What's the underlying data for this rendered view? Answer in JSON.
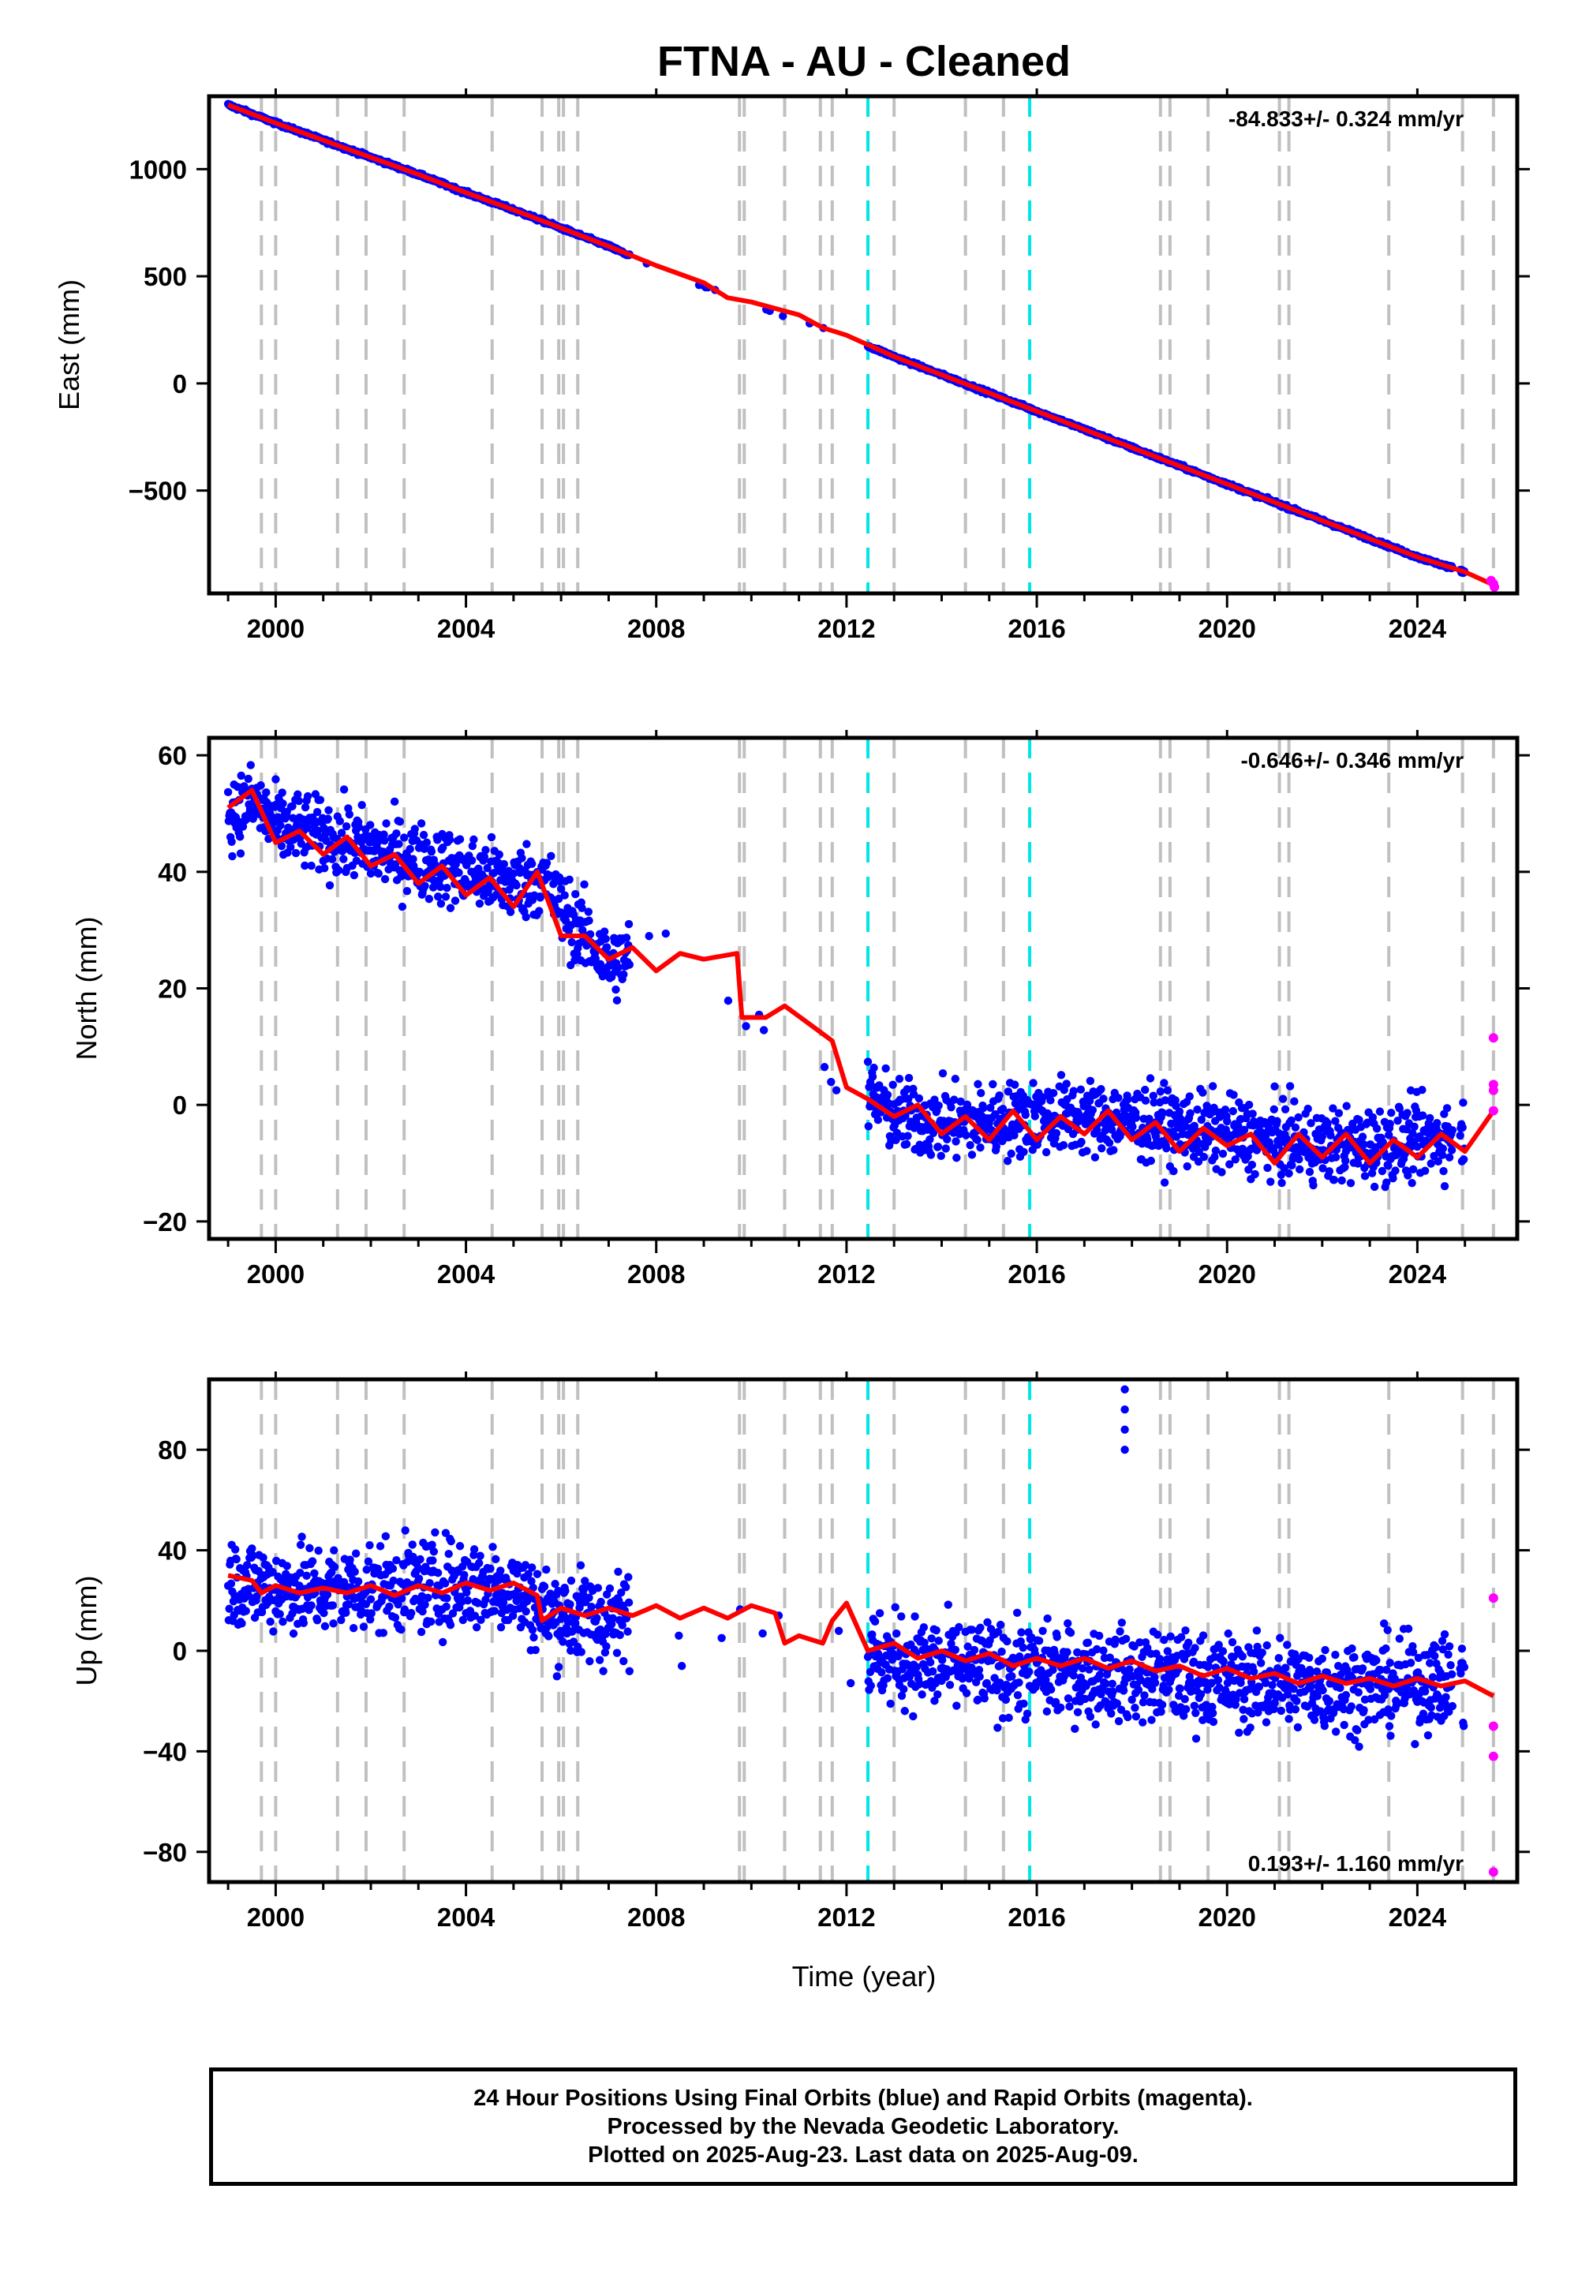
{
  "title": "FTNA  - AU - Cleaned",
  "xlabel": "Time (year)",
  "x_ticks": [
    2000,
    2004,
    2008,
    2012,
    2016,
    2020,
    2024
  ],
  "footer": {
    "line1": "24 Hour Positions Using Final Orbits (blue) and Rapid Orbits (magenta).",
    "line2": "Processed by the Nevada Geodetic Laboratory.",
    "line3": "Plotted on 2025-Aug-23. Last data on 2025-Aug-09."
  },
  "colors": {
    "final_orbits": "#0000ff",
    "rapid_orbits": "#ff00ff",
    "model": "#ff0000",
    "gray_events": "#c0c0c0",
    "cyan_events": "#00e5e5"
  },
  "chart_data": [
    {
      "type": "scatter",
      "panel": "east",
      "ylabel": "East (mm)",
      "rate_text": "-84.833+/- 0.324 mm/yr",
      "xlim": [
        1998.6,
        2026.1
      ],
      "ylim": [
        -980,
        1340
      ],
      "y_ticks": [
        -500,
        0,
        500,
        1000
      ],
      "gray_events": [
        1999.7,
        2000.0,
        2001.3,
        2001.9,
        2002.7,
        2004.55,
        2005.6,
        2005.95,
        2006.05,
        2006.35,
        2009.75,
        2009.85,
        2010.7,
        2011.45,
        2011.7,
        2013.0,
        2014.5,
        2015.3,
        2018.6,
        2018.8,
        2019.6,
        2021.1,
        2021.3,
        2023.4,
        2024.95,
        2025.6
      ],
      "cyan_events": [
        2012.45,
        2015.85
      ],
      "series": [
        {
          "kind": "final",
          "x": [
            1999.0,
            2000.0,
            2001.0,
            2002.0,
            2003.0,
            2004.0,
            2005.0,
            2006.0,
            2007.0,
            2007.4,
            2008.8,
            2009.7,
            2010.5,
            2011.5,
            2012.45,
            2013.0,
            2014.0,
            2015.0,
            2016.0,
            2017.0,
            2018.0,
            2019.0,
            2020.0,
            2021.0,
            2022.0,
            2023.0,
            2024.0,
            2025.0
          ],
          "y": [
            1300,
            1215,
            1135,
            1055,
            975,
            890,
            810,
            725,
            640,
            600,
            470,
            395,
            330,
            265,
            175,
            125,
            40,
            -45,
            -130,
            -215,
            -300,
            -385,
            -470,
            -555,
            -640,
            -725,
            -810,
            -880
          ]
        },
        {
          "kind": "rapid",
          "x": [
            2025.55,
            2025.6,
            2025.62
          ],
          "y": [
            -920,
            -935,
            -950
          ]
        },
        {
          "kind": "model",
          "x": [
            1999.0,
            2000.0,
            2001.0,
            2002.0,
            2003.0,
            2004.0,
            2005.0,
            2006.0,
            2007.0,
            2008.0,
            2009.0,
            2009.5,
            2010.0,
            2011.0,
            2011.5,
            2012.0,
            2012.45,
            2013.0,
            2014.0,
            2015.0,
            2016.0,
            2017.0,
            2018.0,
            2019.0,
            2020.0,
            2021.0,
            2022.0,
            2023.0,
            2024.0,
            2025.0,
            2025.6
          ],
          "y": [
            1300,
            1215,
            1135,
            1055,
            975,
            890,
            810,
            725,
            640,
            550,
            470,
            400,
            380,
            320,
            260,
            225,
            180,
            125,
            40,
            -45,
            -130,
            -215,
            -300,
            -385,
            -470,
            -555,
            -640,
            -725,
            -810,
            -880,
            -940
          ]
        }
      ]
    },
    {
      "type": "scatter",
      "panel": "north",
      "ylabel": "North (mm)",
      "rate_text": "-0.646+/- 0.346 mm/yr",
      "xlim": [
        1998.6,
        2026.1
      ],
      "ylim": [
        -23,
        63
      ],
      "y_ticks": [
        -20,
        0,
        20,
        40,
        60
      ],
      "gray_events": [
        1999.7,
        2000.0,
        2001.3,
        2001.9,
        2002.7,
        2004.55,
        2005.6,
        2005.95,
        2006.05,
        2006.35,
        2009.75,
        2009.85,
        2010.7,
        2011.45,
        2011.7,
        2013.0,
        2014.5,
        2015.3,
        2018.6,
        2018.8,
        2019.6,
        2021.1,
        2021.3,
        2023.4,
        2024.95,
        2025.6
      ],
      "cyan_events": [
        2012.45,
        2015.85
      ],
      "series": [
        {
          "kind": "final",
          "x": [
            1999.0,
            1999.5,
            2000.0,
            2001.0,
            2002.0,
            2003.0,
            2004.0,
            2005.0,
            2005.6,
            2006.0,
            2006.5,
            2007.0,
            2007.5,
            2008.9,
            2010.0,
            2010.6,
            2011.2,
            2012.45,
            2013.0,
            2014.0,
            2015.0,
            2016.0,
            2017.0,
            2018.0,
            2019.0,
            2020.0,
            2021.0,
            2022.0,
            2023.0,
            2024.0,
            2025.0
          ],
          "y": [
            50,
            52,
            48,
            46,
            44,
            42,
            40,
            38,
            39,
            34,
            29,
            24,
            26,
            29,
            15,
            16,
            13,
            2,
            -2,
            -3,
            -3,
            -2,
            -2,
            -3,
            -4,
            -5,
            -6,
            -7,
            -7,
            -6,
            -5
          ]
        },
        {
          "kind": "rapid",
          "x": [
            2025.6,
            2025.6,
            2025.6,
            2025.6
          ],
          "y": [
            11.5,
            3.5,
            2.5,
            -1
          ]
        },
        {
          "kind": "model",
          "x": [
            1999.0,
            1999.5,
            2000.0,
            2000.5,
            2001.0,
            2001.5,
            2002.0,
            2002.5,
            2003.0,
            2003.5,
            2004.0,
            2004.5,
            2005.0,
            2005.5,
            2006.0,
            2006.5,
            2007.0,
            2007.5,
            2008.0,
            2008.5,
            2009.0,
            2009.7,
            2009.8,
            2010.3,
            2010.7,
            2011.2,
            2011.7,
            2012.0,
            2012.45,
            2013.0,
            2013.5,
            2014.0,
            2014.5,
            2015.0,
            2015.5,
            2016.0,
            2016.5,
            2017.0,
            2017.5,
            2018.0,
            2018.5,
            2019.0,
            2019.5,
            2020.0,
            2020.5,
            2021.0,
            2021.5,
            2022.0,
            2022.5,
            2023.0,
            2023.5,
            2024.0,
            2024.5,
            2025.0,
            2025.6
          ],
          "y": [
            51,
            54,
            45,
            47,
            43,
            46,
            41,
            43,
            38,
            41,
            36,
            39,
            34,
            40,
            29,
            29,
            25,
            27,
            23,
            26,
            25,
            26,
            15,
            15,
            17,
            14,
            11,
            3,
            1,
            -2,
            0,
            -5,
            -2,
            -6,
            -1,
            -6,
            -2,
            -5,
            -1,
            -6,
            -3,
            -8,
            -4,
            -7,
            -5,
            -10,
            -5,
            -9,
            -5,
            -10,
            -6,
            -9,
            -5,
            -8,
            -1
          ]
        }
      ]
    },
    {
      "type": "scatter",
      "panel": "up",
      "ylabel": "Up (mm)",
      "rate_text": "0.193+/- 1.160 mm/yr",
      "xlim": [
        1998.6,
        2026.1
      ],
      "ylim": [
        -92,
        108
      ],
      "y_ticks": [
        -80,
        -40,
        0,
        40,
        80
      ],
      "gray_events": [
        1999.7,
        2000.0,
        2001.3,
        2001.9,
        2002.7,
        2004.55,
        2005.6,
        2005.95,
        2006.05,
        2006.35,
        2009.75,
        2009.85,
        2010.7,
        2011.45,
        2011.7,
        2013.0,
        2014.5,
        2015.3,
        2018.6,
        2018.8,
        2019.6,
        2021.1,
        2021.3,
        2023.4,
        2024.95,
        2025.6
      ],
      "cyan_events": [
        2012.45,
        2015.85
      ],
      "series": [
        {
          "kind": "final",
          "x": [
            1999.0,
            2000.0,
            2001.0,
            2002.0,
            2003.0,
            2004.0,
            2005.0,
            2005.7,
            2006.3,
            2007.0,
            2008.9,
            2010.1,
            2010.8,
            2012.45,
            2013.0,
            2014.0,
            2015.0,
            2016.0,
            2017.0,
            2017.85,
            2017.85,
            2018.0,
            2019.0,
            2020.0,
            2021.0,
            2022.0,
            2023.0,
            2024.0,
            2025.0
          ],
          "y": [
            28,
            25,
            24,
            25,
            26,
            27,
            25,
            15,
            14,
            12,
            16,
            18,
            14,
            -2,
            -4,
            -6,
            -7,
            -8,
            -9,
            104,
            88,
            -10,
            -11,
            -12,
            -13,
            -14,
            -14,
            -13,
            -12
          ]
        },
        {
          "kind": "rapid",
          "x": [
            2025.6,
            2025.6,
            2025.6,
            2025.6
          ],
          "y": [
            21,
            -30,
            -42,
            -88
          ]
        },
        {
          "kind": "model",
          "x": [
            1999.0,
            1999.5,
            1999.7,
            2000.0,
            2000.5,
            2001.0,
            2001.5,
            2002.0,
            2002.5,
            2003.0,
            2003.5,
            2004.0,
            2004.5,
            2005.0,
            2005.5,
            2005.6,
            2006.0,
            2006.5,
            2007.0,
            2007.5,
            2008.0,
            2008.5,
            2009.0,
            2009.5,
            2010.0,
            2010.5,
            2010.7,
            2011.0,
            2011.5,
            2011.7,
            2012.0,
            2012.45,
            2013.0,
            2013.5,
            2014.0,
            2014.5,
            2015.0,
            2015.5,
            2016.0,
            2016.5,
            2017.0,
            2017.5,
            2018.0,
            2018.5,
            2019.0,
            2019.5,
            2020.0,
            2020.5,
            2021.0,
            2021.5,
            2022.0,
            2022.5,
            2023.0,
            2023.5,
            2024.0,
            2024.5,
            2025.0,
            2025.6
          ],
          "y": [
            30,
            28,
            23,
            26,
            23,
            25,
            23,
            26,
            22,
            26,
            23,
            27,
            24,
            27,
            22,
            12,
            17,
            14,
            17,
            14,
            18,
            13,
            17,
            13,
            18,
            15,
            3,
            6,
            3,
            12,
            19,
            0,
            3,
            -3,
            0,
            -4,
            -1,
            -6,
            -3,
            -6,
            -3,
            -7,
            -4,
            -8,
            -6,
            -10,
            -7,
            -11,
            -9,
            -13,
            -10,
            -13,
            -11,
            -14,
            -11,
            -14,
            -12,
            -18
          ]
        }
      ]
    }
  ]
}
